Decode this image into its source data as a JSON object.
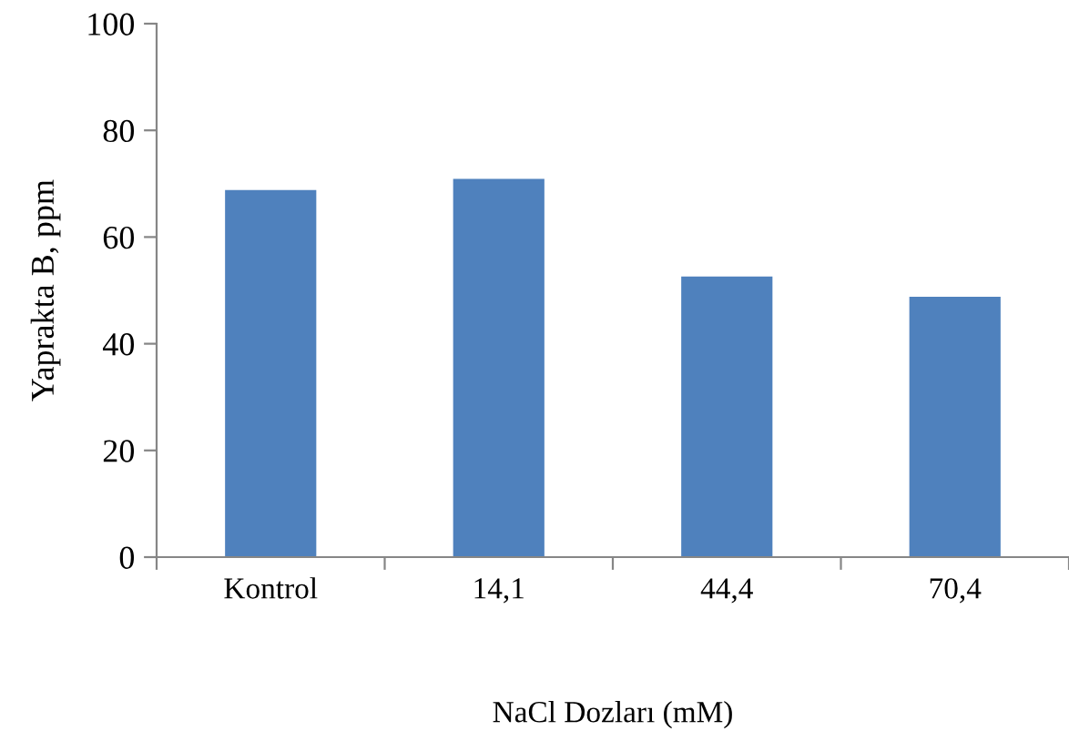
{
  "chart_data": {
    "type": "bar",
    "xlabel": "NaCl Dozları (mM)",
    "ylabel": "Yaprakta B, ppm",
    "categories": [
      "Kontrol",
      "14,1",
      "44,4",
      "70,4"
    ],
    "values": [
      68.8,
      70.9,
      52.6,
      48.8
    ],
    "color": "#4f81bd",
    "ylim": [
      0,
      100
    ],
    "yticks": [
      0,
      20,
      40,
      60,
      80,
      100
    ],
    "grid": false,
    "legend": false
  }
}
